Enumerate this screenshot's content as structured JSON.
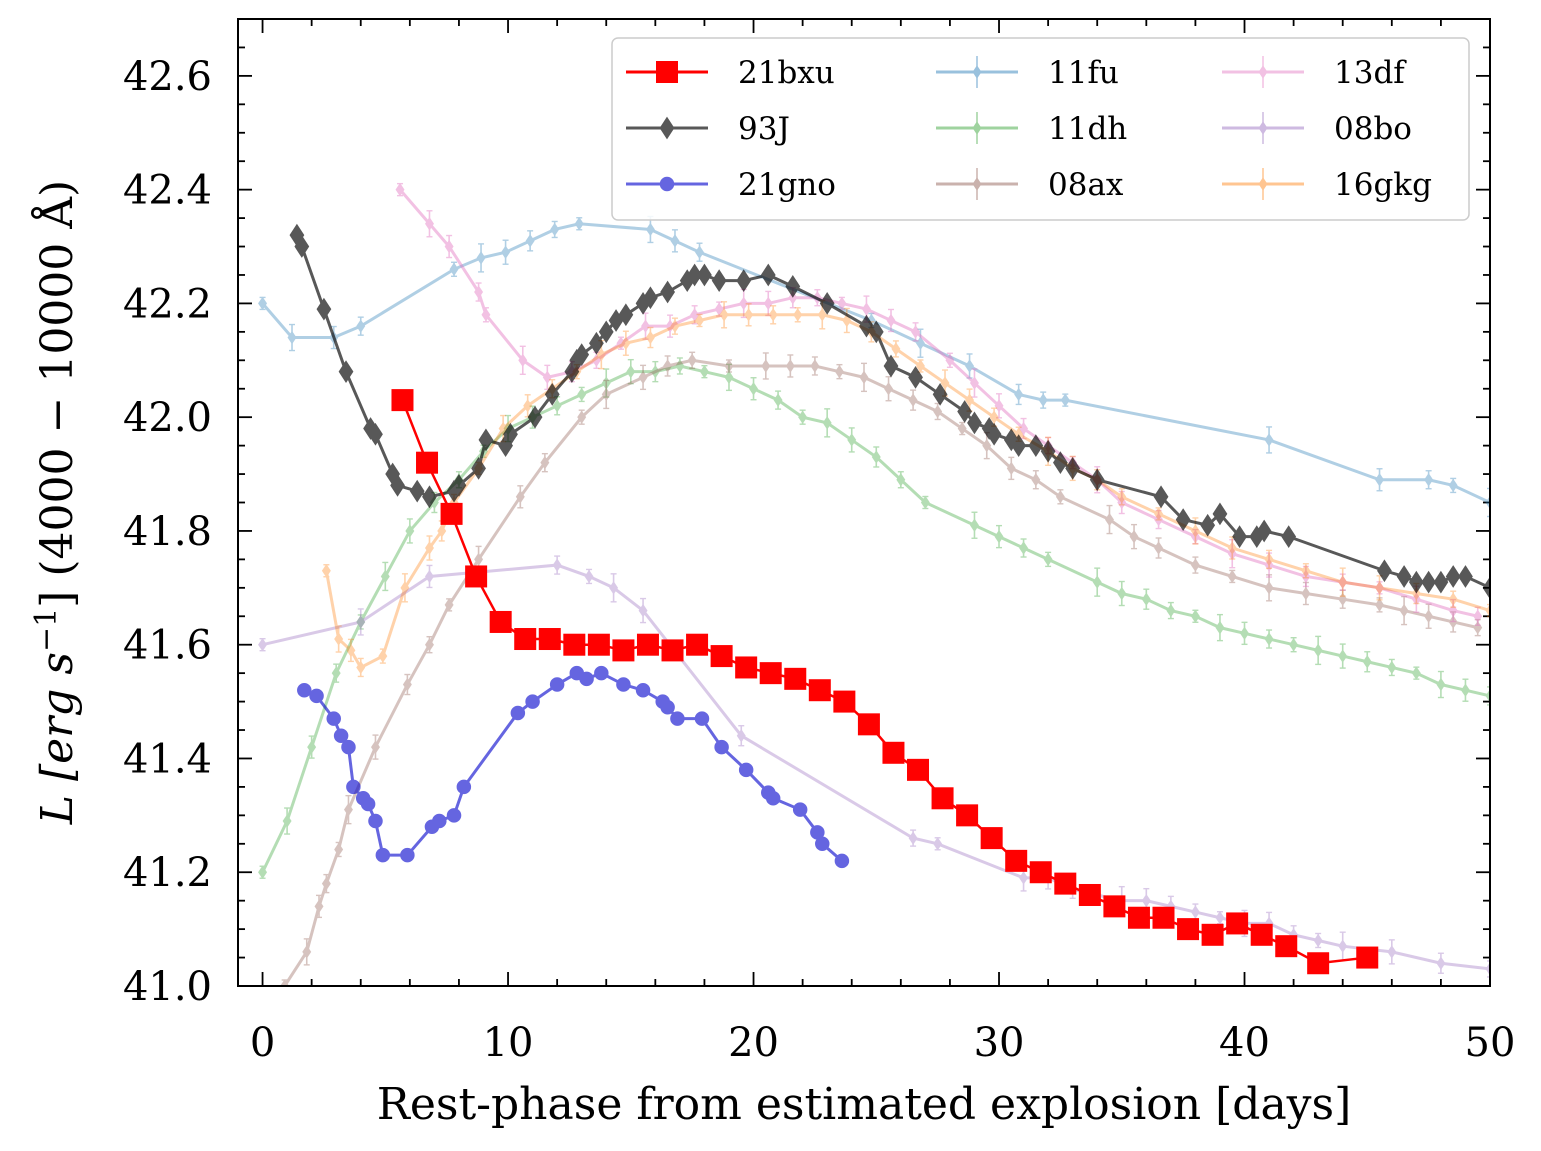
{
  "chart_data": {
    "type": "line",
    "xlabel": "Rest-phase from estimated explosion [days]",
    "ylabel": {
      "prefix": "L [erg s",
      "exponent": "−1",
      "suffix": "] (4000 − 10000 Å)"
    },
    "xlim": [
      -1,
      50
    ],
    "ylim": [
      41.0,
      42.7
    ],
    "xticks": [
      0,
      10,
      20,
      30,
      40,
      50
    ],
    "yticks": [
      41.0,
      41.2,
      41.4,
      41.6,
      41.8,
      42.0,
      42.2,
      42.4,
      42.6
    ],
    "legend_position": "top-right",
    "series": [
      {
        "name": "11fu",
        "color": "#1f77b4",
        "marker": "thin-diamond",
        "alpha": 0.35,
        "errorbars": true,
        "x": [
          0.0,
          1.2,
          2.9,
          4.0,
          7.8,
          8.9,
          9.9,
          10.9,
          11.9,
          12.9,
          15.8,
          16.8,
          17.8,
          24.8,
          26.8,
          28.8,
          30.8,
          31.8,
          32.7,
          41.0,
          45.5,
          47.5,
          48.5,
          50.0
        ],
        "y": [
          42.2,
          42.14,
          42.14,
          42.16,
          42.26,
          42.28,
          42.29,
          42.31,
          42.33,
          42.34,
          42.33,
          42.31,
          42.29,
          42.17,
          42.13,
          42.09,
          42.04,
          42.03,
          42.03,
          41.96,
          41.89,
          41.89,
          41.88,
          41.85
        ]
      },
      {
        "name": "11dh",
        "color": "#2ca02c",
        "marker": "thin-diamond",
        "alpha": 0.35,
        "errorbars": true,
        "x": [
          0.0,
          1.0,
          2.0,
          3.0,
          4.0,
          5.0,
          6.0,
          7.0,
          8.0,
          9.0,
          10.0,
          11.0,
          12.0,
          13.0,
          14.0,
          15.0,
          16.0,
          17.0,
          18.0,
          19.0,
          20.0,
          21.0,
          22.0,
          23.0,
          24.0,
          25.0,
          26.0,
          27.0,
          29.0,
          30.0,
          31.0,
          32.0,
          34.0,
          35.0,
          36.0,
          37.0,
          38.0,
          39.0,
          40.0,
          41.0,
          42.0,
          43.0,
          44.0,
          45.0,
          46.0,
          47.0,
          48.0,
          49.0,
          50.0
        ],
        "y": [
          41.2,
          41.29,
          41.42,
          41.55,
          41.64,
          41.72,
          41.8,
          41.85,
          41.89,
          41.94,
          41.98,
          42.0,
          42.02,
          42.04,
          42.06,
          42.08,
          42.08,
          42.09,
          42.08,
          42.07,
          42.05,
          42.03,
          42.0,
          41.99,
          41.96,
          41.93,
          41.89,
          41.85,
          41.81,
          41.79,
          41.77,
          41.75,
          41.71,
          41.69,
          41.68,
          41.66,
          41.65,
          41.63,
          41.62,
          41.61,
          41.6,
          41.59,
          41.58,
          41.57,
          41.56,
          41.55,
          41.53,
          41.52,
          41.51
        ]
      },
      {
        "name": "08ax",
        "color": "#8c564b",
        "marker": "thin-diamond",
        "alpha": 0.35,
        "errorbars": true,
        "x": [
          0.9,
          1.8,
          2.3,
          2.6,
          3.1,
          3.5,
          4.6,
          5.9,
          6.8,
          7.6,
          8.8,
          10.5,
          11.5,
          13.0,
          14.0,
          15.5,
          16.5,
          17.5,
          19.0,
          20.5,
          21.5,
          22.5,
          23.5,
          24.5,
          25.5,
          26.5,
          27.5,
          28.5,
          29.5,
          30.5,
          31.5,
          32.5,
          34.5,
          35.5,
          36.5,
          38.0,
          39.5,
          41.0,
          42.5,
          44.0,
          45.5,
          46.5,
          47.5,
          48.5,
          49.5
        ],
        "y": [
          41.0,
          41.06,
          41.14,
          41.18,
          41.24,
          41.31,
          41.42,
          41.53,
          41.6,
          41.67,
          41.75,
          41.86,
          41.92,
          42.0,
          42.04,
          42.07,
          42.09,
          42.1,
          42.09,
          42.09,
          42.09,
          42.09,
          42.08,
          42.07,
          42.05,
          42.03,
          42.01,
          41.98,
          41.95,
          41.91,
          41.89,
          41.86,
          41.82,
          41.79,
          41.77,
          41.74,
          41.72,
          41.7,
          41.69,
          41.68,
          41.67,
          41.66,
          41.65,
          41.64,
          41.63
        ]
      },
      {
        "name": "13df",
        "color": "#e377c2",
        "marker": "thin-diamond",
        "alpha": 0.45,
        "errorbars": true,
        "x": [
          5.6,
          6.8,
          7.6,
          8.8,
          9.1,
          10.6,
          11.6,
          12.6,
          13.6,
          14.6,
          15.6,
          16.6,
          17.6,
          18.6,
          19.6,
          20.6,
          21.6,
          22.6,
          23.6,
          24.6,
          25.6,
          26.6,
          28.0,
          29.0,
          30.0,
          31.0,
          32.0,
          33.0,
          34.0,
          35.0,
          36.5,
          38.0,
          39.5,
          41.0,
          42.5,
          44.0,
          45.5,
          47.0,
          48.5,
          49.5
        ],
        "y": [
          42.4,
          42.34,
          42.3,
          42.22,
          42.18,
          42.1,
          42.07,
          42.08,
          42.1,
          42.13,
          42.16,
          42.16,
          42.18,
          42.19,
          42.2,
          42.2,
          42.21,
          42.21,
          42.2,
          42.19,
          42.17,
          42.15,
          42.1,
          42.06,
          42.02,
          41.98,
          41.95,
          41.92,
          41.89,
          41.85,
          41.82,
          41.79,
          41.76,
          41.74,
          41.72,
          41.71,
          41.7,
          41.68,
          41.66,
          41.65
        ]
      },
      {
        "name": "08bo",
        "color": "#9467bd",
        "marker": "thin-diamond",
        "alpha": 0.35,
        "errorbars": true,
        "x": [
          0.0,
          4.0,
          6.8,
          12.0,
          13.3,
          14.3,
          15.5,
          19.5,
          26.5,
          27.5,
          31.0,
          32.0,
          33.0,
          34.0,
          35.0,
          36.0,
          37.0,
          38.0,
          39.0,
          40.0,
          41.0,
          42.0,
          43.0,
          44.0,
          46.0,
          48.0,
          50.0
        ],
        "y": [
          41.6,
          41.64,
          41.72,
          41.74,
          41.72,
          41.7,
          41.66,
          41.44,
          41.26,
          41.25,
          41.19,
          41.19,
          41.17,
          41.16,
          41.15,
          41.15,
          41.14,
          41.13,
          41.12,
          41.11,
          41.11,
          41.09,
          41.08,
          41.07,
          41.06,
          41.04,
          41.03
        ]
      },
      {
        "name": "16gkg",
        "color": "#ff7f0e",
        "marker": "thin-diamond",
        "alpha": 0.35,
        "errorbars": true,
        "x": [
          2.6,
          3.1,
          3.6,
          4.0,
          4.9,
          5.8,
          6.8,
          7.3,
          7.8,
          8.8,
          9.8,
          10.8,
          11.8,
          12.8,
          13.8,
          14.8,
          15.8,
          16.8,
          17.8,
          18.8,
          19.8,
          20.8,
          21.8,
          22.8,
          23.8,
          24.8,
          25.8,
          26.8,
          27.8,
          28.8,
          29.8,
          30.8,
          32.0,
          33.0,
          34.0,
          35.0,
          36.5,
          38.0,
          39.5,
          41.0,
          42.5,
          44.0,
          45.5,
          47.0,
          48.5,
          50.0
        ],
        "y": [
          41.73,
          41.61,
          41.59,
          41.56,
          41.58,
          41.7,
          41.77,
          41.8,
          41.85,
          41.91,
          41.98,
          42.02,
          42.05,
          42.08,
          42.11,
          42.13,
          42.14,
          42.16,
          42.17,
          42.18,
          42.18,
          42.18,
          42.18,
          42.18,
          42.17,
          42.15,
          42.12,
          42.09,
          42.06,
          42.03,
          42.0,
          41.97,
          41.94,
          41.91,
          41.89,
          41.86,
          41.83,
          41.8,
          41.77,
          41.75,
          41.73,
          41.71,
          41.7,
          41.69,
          41.68,
          41.66
        ]
      },
      {
        "name": "93J",
        "color": "#000000",
        "marker": "thin-diamond",
        "alpha": 0.65,
        "errorbars": false,
        "x": [
          1.4,
          1.6,
          2.5,
          3.4,
          4.4,
          4.6,
          5.3,
          5.5,
          6.3,
          6.8,
          7.8,
          8.0,
          8.8,
          9.1,
          9.9,
          10.1,
          11.1,
          11.8,
          12.6,
          12.8,
          13.0,
          13.6,
          14.0,
          14.4,
          14.8,
          15.5,
          15.8,
          16.5,
          17.3,
          17.6,
          18.0,
          18.6,
          19.6,
          20.6,
          21.6,
          23.0,
          24.6,
          25.0,
          25.6,
          26.6,
          27.6,
          28.6,
          29.0,
          29.6,
          29.8,
          30.5,
          30.8,
          31.5,
          32.0,
          32.5,
          33.0,
          34.0,
          36.6,
          37.5,
          38.5,
          39.0,
          39.8,
          40.5,
          40.8,
          41.8,
          45.7,
          46.5,
          47.0,
          47.5,
          48.0,
          48.5,
          49.0,
          50.0
        ],
        "y": [
          42.32,
          42.3,
          42.19,
          42.08,
          41.98,
          41.97,
          41.9,
          41.88,
          41.87,
          41.86,
          41.87,
          41.88,
          41.91,
          41.96,
          41.95,
          41.97,
          42.0,
          42.04,
          42.08,
          42.1,
          42.11,
          42.13,
          42.15,
          42.17,
          42.18,
          42.2,
          42.21,
          42.22,
          42.24,
          42.25,
          42.25,
          42.24,
          42.24,
          42.25,
          42.23,
          42.2,
          42.16,
          42.15,
          42.09,
          42.07,
          42.04,
          42.01,
          41.99,
          41.98,
          41.97,
          41.96,
          41.95,
          41.95,
          41.94,
          41.92,
          41.91,
          41.89,
          41.86,
          41.82,
          41.81,
          41.83,
          41.79,
          41.79,
          41.8,
          41.79,
          41.73,
          41.72,
          41.71,
          41.71,
          41.71,
          41.72,
          41.72,
          41.7
        ]
      },
      {
        "name": "21gno",
        "color": "#0000cc",
        "marker": "circle",
        "alpha": 0.6,
        "errorbars": false,
        "x": [
          1.7,
          2.2,
          2.9,
          3.2,
          3.5,
          3.7,
          4.1,
          4.3,
          4.6,
          4.9,
          5.9,
          6.9,
          7.2,
          7.8,
          8.2,
          10.4,
          11.0,
          12.0,
          12.8,
          13.2,
          13.8,
          14.7,
          15.5,
          16.3,
          16.5,
          16.9,
          17.9,
          18.7,
          19.7,
          20.6,
          20.8,
          21.9,
          22.6,
          22.8,
          23.6
        ],
        "y": [
          41.52,
          41.51,
          41.47,
          41.44,
          41.42,
          41.35,
          41.33,
          41.32,
          41.29,
          41.23,
          41.23,
          41.28,
          41.29,
          41.3,
          41.35,
          41.48,
          41.5,
          41.53,
          41.55,
          41.54,
          41.55,
          41.53,
          41.52,
          41.5,
          41.49,
          41.47,
          41.47,
          41.42,
          41.38,
          41.34,
          41.33,
          41.31,
          41.27,
          41.25,
          41.22
        ]
      },
      {
        "name": "21bxu",
        "color": "#ff0000",
        "marker": "square",
        "alpha": 1.0,
        "errorbars": false,
        "x": [
          5.7,
          6.7,
          7.7,
          8.7,
          9.7,
          10.7,
          11.7,
          12.7,
          13.7,
          14.7,
          15.7,
          16.7,
          17.7,
          18.7,
          19.7,
          20.7,
          21.7,
          22.7,
          23.7,
          24.7,
          25.7,
          26.7,
          27.7,
          28.7,
          29.7,
          30.7,
          31.7,
          32.7,
          33.7,
          34.7,
          35.7,
          36.7,
          37.7,
          38.7,
          39.7,
          40.7,
          41.7,
          43.0,
          45.0
        ],
        "y": [
          42.03,
          41.92,
          41.83,
          41.72,
          41.64,
          41.61,
          41.61,
          41.6,
          41.6,
          41.59,
          41.6,
          41.59,
          41.6,
          41.58,
          41.56,
          41.55,
          41.54,
          41.52,
          41.5,
          41.46,
          41.41,
          41.38,
          41.33,
          41.3,
          41.26,
          41.22,
          41.2,
          41.18,
          41.16,
          41.14,
          41.12,
          41.12,
          41.1,
          41.09,
          41.11,
          41.09,
          41.07,
          41.04,
          41.05
        ]
      }
    ],
    "legend_order": [
      "21bxu",
      "93J",
      "21gno",
      "11fu",
      "11dh",
      "08ax",
      "13df",
      "08bo",
      "16gkg"
    ]
  }
}
